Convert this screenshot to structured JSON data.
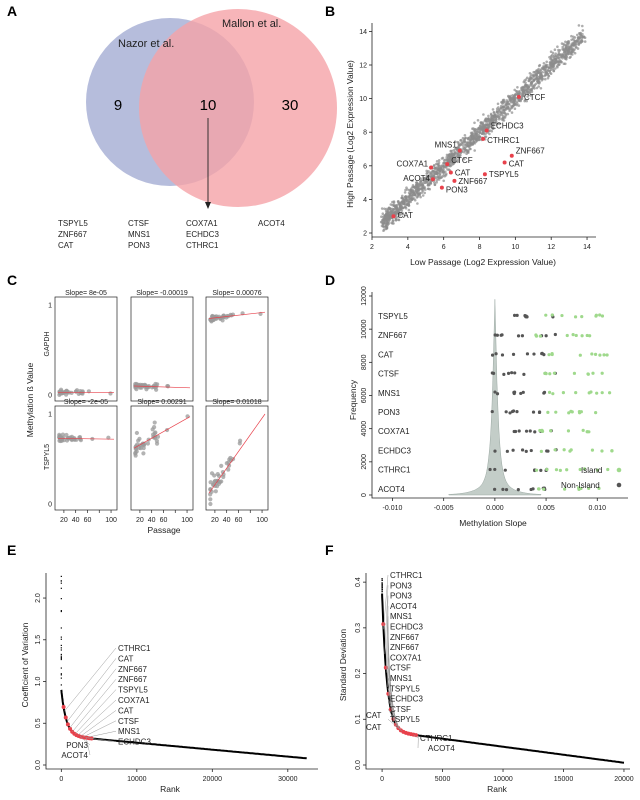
{
  "panels": {
    "A": "A",
    "B": "B",
    "C": "C",
    "D": "D",
    "E": "E",
    "F": "F"
  },
  "colors": {
    "nazor": "#a9b1d6",
    "mallon": "#f5a3a8",
    "red": "#e8414b",
    "gray": "#8c8c8c",
    "green": "#9fd98c",
    "dark": "#555555",
    "density": "#c3cdc8"
  },
  "chart_data": [
    {
      "panel": "A",
      "type": "venn",
      "sets": [
        {
          "name": "Nazor et al.",
          "only": "9"
        },
        {
          "name": "Mallon et al.",
          "only": "30"
        }
      ],
      "overlap": "10",
      "overlap_genes": [
        [
          "TSPYL5",
          "ZNF667",
          "CAT"
        ],
        [
          "CTSF",
          "MNS1",
          "PON3"
        ],
        [
          "COX7A1",
          "ECHDC3",
          "CTHRC1"
        ],
        [
          "ACOT4"
        ]
      ]
    },
    {
      "panel": "B",
      "type": "scatter",
      "xlabel": "Low Passage (Log2 Expression Value)",
      "ylabel": "High Passage (Log2 Expression Value)",
      "xlim": [
        2,
        14.5
      ],
      "ylim": [
        2,
        14.5
      ],
      "xticks": [
        "2",
        "4",
        "6",
        "8",
        "10",
        "12",
        "14"
      ],
      "yticks": [
        "2",
        "4",
        "6",
        "8",
        "10",
        "12",
        "14"
      ],
      "highlighted": [
        {
          "label": "CTCF",
          "x": 10.2,
          "y": 10.1
        },
        {
          "label": "ECHDC3",
          "x": 8.4,
          "y": 8.1
        },
        {
          "label": "CTHRC1",
          "x": 8.2,
          "y": 7.6
        },
        {
          "label": "MNS1",
          "x": 6.9,
          "y": 6.9
        },
        {
          "label": "ZNF667",
          "x": 9.8,
          "y": 6.6
        },
        {
          "label": "CAT",
          "x": 9.4,
          "y": 6.2
        },
        {
          "label": "CTCF",
          "x": 6.2,
          "y": 6.1
        },
        {
          "label": "COX7A1",
          "x": 5.3,
          "y": 5.9
        },
        {
          "label": "CAT",
          "x": 6.4,
          "y": 5.6
        },
        {
          "label": "TSPYL5",
          "x": 8.3,
          "y": 5.5
        },
        {
          "label": "ACOT4",
          "x": 5.4,
          "y": 5.2
        },
        {
          "label": "ZNF667",
          "x": 6.6,
          "y": 5.1
        },
        {
          "label": "PON3",
          "x": 5.9,
          "y": 4.7
        },
        {
          "label": "CAT",
          "x": 3.2,
          "y": 3.0
        }
      ]
    },
    {
      "panel": "C",
      "type": "scatter",
      "xlabel": "Passage",
      "ylabel": "Methylation ß Value",
      "xticks": [
        "20",
        "40",
        "60",
        "80",
        "100"
      ],
      "yticks": [
        "0",
        "1"
      ],
      "rows": [
        "GAPDH",
        "TSPYL5"
      ],
      "slopes": [
        [
          "Slope= 8e-05",
          "Slope= -0.00019",
          "Slope= 0.00076"
        ],
        [
          "Slope= -2e-05",
          "Slope= 0.00291",
          "Slope= 0.01018"
        ]
      ],
      "fit_lines": [
        [
          [
            0.03,
            0.03
          ],
          [
            0.1,
            0.08
          ],
          [
            0.85,
            0.92
          ]
        ],
        [
          [
            0.73,
            0.72
          ],
          [
            0.62,
            0.97
          ],
          [
            0.12,
            1.0
          ]
        ]
      ]
    },
    {
      "panel": "D",
      "type": "scatter",
      "xlabel": "Methylation Slope",
      "ylabel": "Frequency",
      "xlim": [
        -0.012,
        0.013
      ],
      "ylim": [
        0,
        12000
      ],
      "xticks": [
        "-0.010",
        "-0.005",
        "0.000",
        "0.005",
        "0.010"
      ],
      "yticks": [
        "0",
        "2000",
        "4000",
        "6000",
        "8000",
        "10000",
        "12000"
      ],
      "genes": [
        "TSPYL5",
        "ZNF667",
        "CAT",
        "CTSF",
        "MNS1",
        "PON3",
        "COX7A1",
        "ECHDC3",
        "CTHRC1",
        "ACOT4"
      ],
      "legend": [
        "Island",
        "Non-Island"
      ]
    },
    {
      "panel": "E",
      "type": "line",
      "xlabel": "Rank",
      "ylabel": "Coefficient of Variation",
      "xlim": [
        -1500,
        34000
      ],
      "ylim": [
        0,
        2.3
      ],
      "xticks": [
        "0",
        "10000",
        "20000",
        "30000"
      ],
      "yticks": [
        "0.0",
        "0.5",
        "1.0",
        "1.5",
        "2.0"
      ],
      "labels_top": [
        "CTHRC1",
        "CAT",
        "ZNF667",
        "ZNF667",
        "TSPYL5",
        "COX7A1",
        "CAT",
        "CTSF",
        "MNS1",
        "ECHDC3"
      ],
      "labels_bottom": [
        "PON3",
        "ACOT4"
      ]
    },
    {
      "panel": "F",
      "type": "line",
      "xlabel": "Rank",
      "ylabel": "Standard Deviation",
      "xlim": [
        -1000,
        20500
      ],
      "ylim": [
        0,
        0.42
      ],
      "xticks": [
        "0",
        "5000",
        "10000",
        "15000",
        "20000"
      ],
      "yticks": [
        "0.0",
        "0.1",
        "0.2",
        "0.3",
        "0.4"
      ],
      "labels_top": [
        "CTHRC1",
        "PON3",
        "PON3",
        "ACOT4",
        "MNS1",
        "ECHDC3",
        "ZNF667",
        "ZNF667",
        "COX7A1",
        "CTSF",
        "MNS1",
        "TSPYL5",
        "ECHDC3",
        "CTSF",
        "TSPYL5"
      ],
      "labels_left": [
        "CAT",
        "CAT"
      ],
      "labels_bottom": [
        "CTHRC1",
        "ACOT4"
      ]
    }
  ]
}
